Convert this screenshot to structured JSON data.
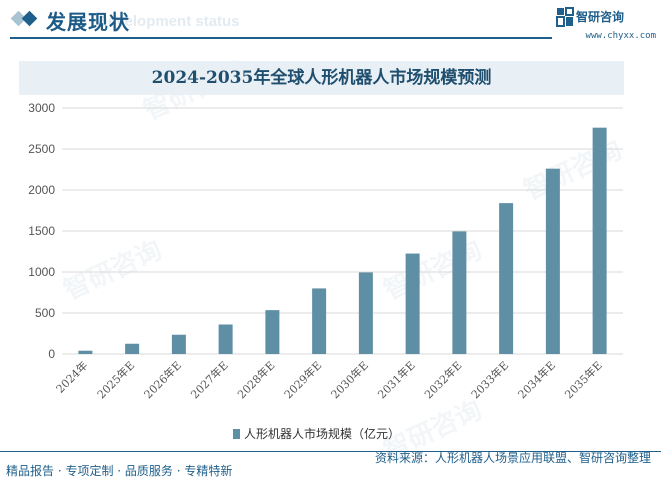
{
  "header": {
    "title": "发展现状",
    "subtitle": "Development status"
  },
  "logo": {
    "name": "智研咨询",
    "url": "www.chyxx.com"
  },
  "footer": {
    "left": "精品报告 · 专项定制 · 品质服务 · 专精特新",
    "source": "资料来源：人形机器人场景应用联盟、智研咨询整理"
  },
  "watermark": "智研咨询",
  "colors": {
    "bar": "#5f8fa5",
    "brand": "#1f5f8b",
    "title_band": "#e8f0f5"
  },
  "chart_data": {
    "type": "bar",
    "title": "2024-2035年全球人形机器人市场规模预测",
    "categories": [
      "2024年",
      "2025年E",
      "2026年E",
      "2027年E",
      "2028年E",
      "2029年E",
      "2030年E",
      "2031年E",
      "2032年E",
      "2033年E",
      "2034年E",
      "2035年E"
    ],
    "series": [
      {
        "name": "人形机器人市场规模（亿元）",
        "values": [
          40,
          125,
          235,
          360,
          535,
          800,
          995,
          1225,
          1495,
          1840,
          2260,
          2760
        ]
      }
    ],
    "yticks": [
      "0",
      "500",
      "1000",
      "1500",
      "2000",
      "2500",
      "3000"
    ],
    "ylim": [
      0,
      3000
    ],
    "grid": true,
    "legend_position": "bottom"
  }
}
